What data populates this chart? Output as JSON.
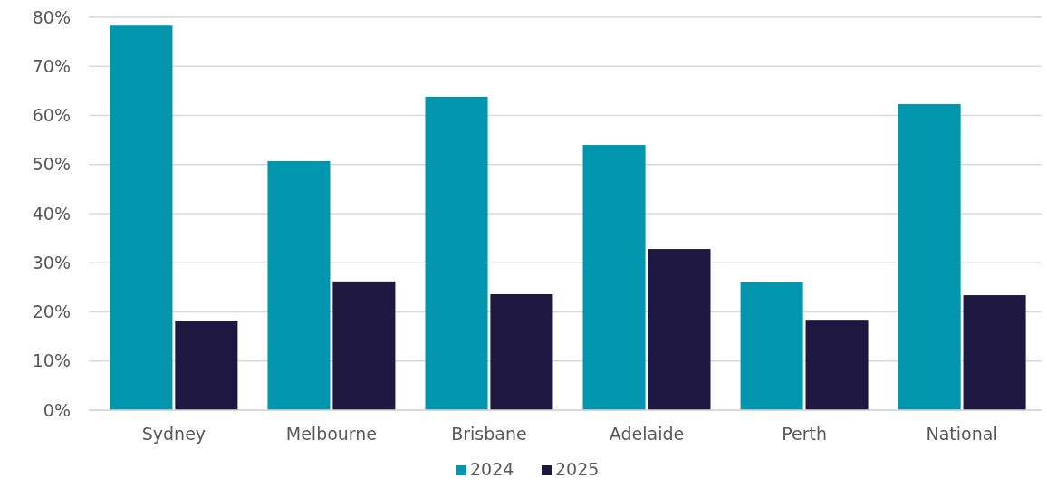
{
  "chart_data": {
    "type": "bar",
    "categories": [
      "Sydney",
      "Melbourne",
      "Brisbane",
      "Adelaide",
      "Perth",
      "National"
    ],
    "series": [
      {
        "name": "2024",
        "color": "#0096ae",
        "values": [
          78.3,
          50.7,
          63.8,
          54.0,
          26.0,
          62.3
        ]
      },
      {
        "name": "2025",
        "color": "#1e173f",
        "values": [
          18.2,
          26.2,
          23.6,
          32.8,
          18.4,
          23.4
        ]
      }
    ],
    "ylim": [
      0,
      80
    ],
    "yticks": [
      {
        "value": 0,
        "label": "0%"
      },
      {
        "value": 10,
        "label": "10%"
      },
      {
        "value": 20,
        "label": "20%"
      },
      {
        "value": 30,
        "label": "30%"
      },
      {
        "value": 40,
        "label": "40%"
      },
      {
        "value": 50,
        "label": "50%"
      },
      {
        "value": 60,
        "label": "60%"
      },
      {
        "value": 70,
        "label": "70%"
      },
      {
        "value": 80,
        "label": "80%"
      }
    ],
    "grid": "y",
    "legend": "bottom"
  }
}
